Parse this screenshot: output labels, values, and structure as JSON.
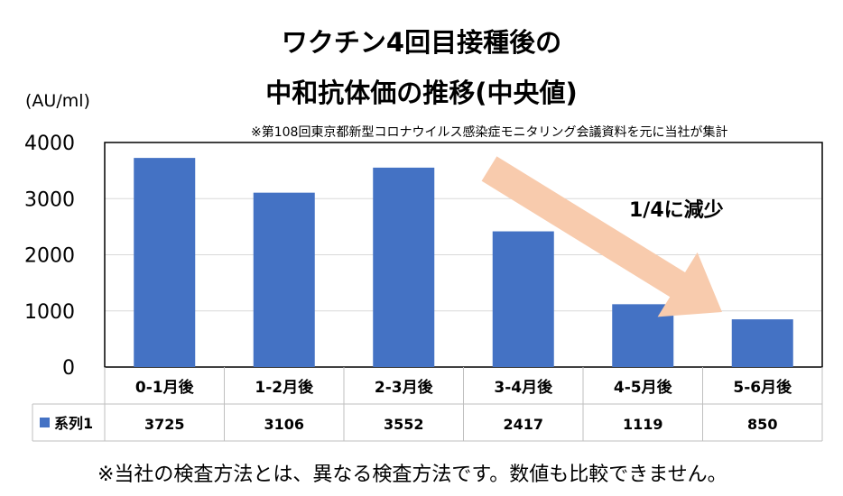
{
  "chart_data": {
    "type": "bar",
    "title_line1": "ワクチン4回目接種後の",
    "title_line2": "中和抗体価の推移(中央値)",
    "unit": "(AU/ml)",
    "source_note": "※第108回東京都新型コロナウイルス感染症モニタリング会議資料を元に当社が集計",
    "categories": [
      "0-1月後",
      "1-2月後",
      "2-3月後",
      "3-4月後",
      "4-5月後",
      "5-6月後"
    ],
    "series": [
      {
        "name": "系列1",
        "values": [
          3725,
          3106,
          3552,
          2417,
          1119,
          850
        ],
        "color": "#4472c4"
      }
    ],
    "value_labels": [
      "3725",
      "3106",
      "3552",
      "2417",
      "1119",
      "850"
    ],
    "ylim": [
      0,
      4000
    ],
    "yticks": [
      "0",
      "1000",
      "2000",
      "3000",
      "4000"
    ],
    "grid": true,
    "legend": "data-table",
    "annotation": "1/4に減少",
    "arrow_color": "#f8cbad",
    "footnote": "※当社の検査方法とは、異なる検査方法です。数値も比較できません。"
  }
}
